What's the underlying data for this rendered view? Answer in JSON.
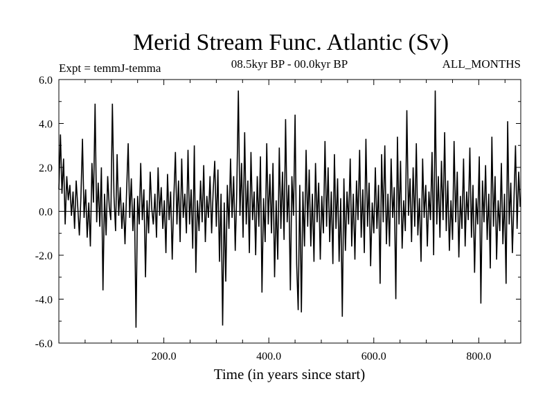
{
  "colors": {
    "background": "#ffffff",
    "line": "#000000",
    "axis": "#000000"
  },
  "chart_data": {
    "type": "line",
    "title": "Merid Stream Func. Atlantic (Sv)",
    "subtitle_left": "Expt = temmJ-temma",
    "subtitle_center": "08.5kyr BP - 00.0kyr BP",
    "subtitle_right": "ALL_MONTHS",
    "xlabel": "Time (in years since start)",
    "ylabel": "",
    "xlim": [
      0,
      880
    ],
    "ylim": [
      -6,
      6
    ],
    "x_ticks": [
      200,
      400,
      600,
      800
    ],
    "x_tick_labels": [
      "200.0",
      "400.0",
      "600.0",
      "800.0"
    ],
    "y_ticks": [
      6,
      4,
      2,
      0,
      -2,
      -4,
      -6
    ],
    "y_tick_labels": [
      "6.0",
      "4.0",
      "2.0",
      "0.0",
      "-2.0",
      "-4.0",
      "-6.0"
    ],
    "zero_line": true,
    "grid": false,
    "series": [
      {
        "name": "Merid Stream Func. Atlantic",
        "points": [
          [
            0,
            1.0
          ],
          [
            3,
            3.5
          ],
          [
            6,
            0.8
          ],
          [
            9,
            2.4
          ],
          [
            12,
            -0.6
          ],
          [
            15,
            1.6
          ],
          [
            18,
            0.5
          ],
          [
            21,
            1.2
          ],
          [
            24,
            -0.2
          ],
          [
            27,
            0.9
          ],
          [
            30,
            -0.8
          ],
          [
            33,
            1.4
          ],
          [
            36,
            0.2
          ],
          [
            39,
            -1.1
          ],
          [
            42,
            0.6
          ],
          [
            45,
            3.3
          ],
          [
            48,
            -0.3
          ],
          [
            51,
            1.0
          ],
          [
            54,
            -1.2
          ],
          [
            57,
            0.4
          ],
          [
            60,
            -1.6
          ],
          [
            63,
            2.2
          ],
          [
            66,
            0.4
          ],
          [
            69,
            4.9
          ],
          [
            72,
            -0.5
          ],
          [
            75,
            1.3
          ],
          [
            78,
            -0.7
          ],
          [
            81,
            2.0
          ],
          [
            84,
            -3.6
          ],
          [
            87,
            0.8
          ],
          [
            90,
            -1.1
          ],
          [
            93,
            1.6
          ],
          [
            96,
            0.2
          ],
          [
            99,
            -0.4
          ],
          [
            102,
            4.9
          ],
          [
            105,
            0.7
          ],
          [
            108,
            -0.9
          ],
          [
            111,
            2.6
          ],
          [
            114,
            -0.2
          ],
          [
            117,
            1.1
          ],
          [
            120,
            -0.8
          ],
          [
            123,
            0.4
          ],
          [
            126,
            -1.5
          ],
          [
            129,
            0.9
          ],
          [
            132,
            3.1
          ],
          [
            135,
            -0.3
          ],
          [
            138,
            1.5
          ],
          [
            141,
            -0.9
          ],
          [
            144,
            0.6
          ],
          [
            147,
            -5.3
          ],
          [
            150,
            0.7
          ],
          [
            153,
            -0.6
          ],
          [
            156,
            2.2
          ],
          [
            159,
            -0.4
          ],
          [
            162,
            1.0
          ],
          [
            165,
            -3.0
          ],
          [
            168,
            0.5
          ],
          [
            171,
            -1.0
          ],
          [
            174,
            1.8
          ],
          [
            177,
            0.1
          ],
          [
            180,
            -0.6
          ],
          [
            183,
            0.8
          ],
          [
            186,
            -1.2
          ],
          [
            189,
            2.0
          ],
          [
            192,
            -0.2
          ],
          [
            195,
            1.1
          ],
          [
            198,
            -0.8
          ],
          [
            201,
            0.5
          ],
          [
            204,
            -1.9
          ],
          [
            207,
            1.7
          ],
          [
            210,
            -0.4
          ],
          [
            213,
            0.9
          ],
          [
            216,
            -2.2
          ],
          [
            219,
            0.6
          ],
          [
            222,
            2.7
          ],
          [
            225,
            -0.6
          ],
          [
            228,
            1.4
          ],
          [
            231,
            -1.4
          ],
          [
            234,
            2.4
          ],
          [
            237,
            -0.3
          ],
          [
            240,
            0.8
          ],
          [
            243,
            -1.0
          ],
          [
            246,
            2.8
          ],
          [
            249,
            -0.6
          ],
          [
            252,
            1.0
          ],
          [
            255,
            -1.7
          ],
          [
            258,
            3.0
          ],
          [
            261,
            -2.8
          ],
          [
            264,
            0.5
          ],
          [
            267,
            -0.9
          ],
          [
            270,
            1.4
          ],
          [
            273,
            -0.5
          ],
          [
            276,
            2.1
          ],
          [
            279,
            -1.4
          ],
          [
            282,
            0.7
          ],
          [
            285,
            -0.3
          ],
          [
            288,
            1.6
          ],
          [
            291,
            -1.0
          ],
          [
            294,
            0.9
          ],
          [
            297,
            2.3
          ],
          [
            300,
            -0.7
          ],
          [
            303,
            1.9
          ],
          [
            306,
            -2.3
          ],
          [
            309,
            0.8
          ],
          [
            312,
            -5.2
          ],
          [
            315,
            0.4
          ],
          [
            318,
            -3.2
          ],
          [
            321,
            1.2
          ],
          [
            324,
            -0.8
          ],
          [
            327,
            2.4
          ],
          [
            330,
            -0.3
          ],
          [
            333,
            1.6
          ],
          [
            336,
            -1.8
          ],
          [
            339,
            0.9
          ],
          [
            342,
            5.5
          ],
          [
            345,
            -0.2
          ],
          [
            348,
            2.2
          ],
          [
            351,
            -1.2
          ],
          [
            354,
            3.6
          ],
          [
            357,
            -0.6
          ],
          [
            360,
            1.4
          ],
          [
            363,
            -1.9
          ],
          [
            366,
            2.7
          ],
          [
            369,
            -0.4
          ],
          [
            372,
            0.9
          ],
          [
            375,
            -2.0
          ],
          [
            378,
            1.6
          ],
          [
            381,
            -0.7
          ],
          [
            384,
            2.5
          ],
          [
            387,
            -3.7
          ],
          [
            390,
            0.6
          ],
          [
            393,
            -1.4
          ],
          [
            396,
            3.1
          ],
          [
            399,
            -0.6
          ],
          [
            402,
            1.7
          ],
          [
            405,
            -1.0
          ],
          [
            408,
            2.2
          ],
          [
            411,
            -3.0
          ],
          [
            414,
            0.5
          ],
          [
            417,
            -2.2
          ],
          [
            420,
            2.9
          ],
          [
            423,
            -0.8
          ],
          [
            426,
            1.8
          ],
          [
            429,
            -1.3
          ],
          [
            432,
            4.2
          ],
          [
            435,
            -0.5
          ],
          [
            438,
            1.2
          ],
          [
            441,
            -3.6
          ],
          [
            444,
            1.6
          ],
          [
            447,
            -0.2
          ],
          [
            450,
            4.4
          ],
          [
            453,
            -2.4
          ],
          [
            456,
            -4.5
          ],
          [
            459,
            1.2
          ],
          [
            462,
            -4.6
          ],
          [
            465,
            0.9
          ],
          [
            468,
            -1.6
          ],
          [
            471,
            2.8
          ],
          [
            474,
            -0.7
          ],
          [
            477,
            1.9
          ],
          [
            480,
            -1.6
          ],
          [
            483,
            0.8
          ],
          [
            486,
            -2.3
          ],
          [
            489,
            2.2
          ],
          [
            492,
            -0.5
          ],
          [
            495,
            1.3
          ],
          [
            498,
            -2.2
          ],
          [
            501,
            0.7
          ],
          [
            504,
            -1.0
          ],
          [
            507,
            3.2
          ],
          [
            510,
            -0.7
          ],
          [
            513,
            2.0
          ],
          [
            516,
            -1.4
          ],
          [
            519,
            0.9
          ],
          [
            522,
            -2.4
          ],
          [
            525,
            2.6
          ],
          [
            528,
            -0.8
          ],
          [
            531,
            1.5
          ],
          [
            534,
            -2.3
          ],
          [
            537,
            0.6
          ],
          [
            540,
            -4.8
          ],
          [
            543,
            1.5
          ],
          [
            546,
            -1.8
          ],
          [
            549,
            0.9
          ],
          [
            552,
            -0.6
          ],
          [
            555,
            2.4
          ],
          [
            558,
            -1.6
          ],
          [
            561,
            0.8
          ],
          [
            564,
            -2.2
          ],
          [
            567,
            1.4
          ],
          [
            570,
            -0.4
          ],
          [
            573,
            2.8
          ],
          [
            576,
            -1.2
          ],
          [
            579,
            1.0
          ],
          [
            582,
            -1.9
          ],
          [
            585,
            3.3
          ],
          [
            588,
            -0.7
          ],
          [
            591,
            1.3
          ],
          [
            594,
            -2.5
          ],
          [
            597,
            0.4
          ],
          [
            600,
            -1.0
          ],
          [
            603,
            2.0
          ],
          [
            606,
            -0.8
          ],
          [
            609,
            1.2
          ],
          [
            612,
            -3.3
          ],
          [
            615,
            2.6
          ],
          [
            618,
            -0.5
          ],
          [
            621,
            3.0
          ],
          [
            624,
            -1.5
          ],
          [
            627,
            0.8
          ],
          [
            630,
            -1.6
          ],
          [
            633,
            2.4
          ],
          [
            636,
            -0.3
          ],
          [
            639,
            1.1
          ],
          [
            642,
            -4.0
          ],
          [
            645,
            3.4
          ],
          [
            648,
            -0.6
          ],
          [
            651,
            2.3
          ],
          [
            654,
            -1.7
          ],
          [
            657,
            0.5
          ],
          [
            660,
            -0.9
          ],
          [
            663,
            4.6
          ],
          [
            666,
            -0.2
          ],
          [
            669,
            1.5
          ],
          [
            672,
            -1.4
          ],
          [
            675,
            2.0
          ],
          [
            678,
            -0.7
          ],
          [
            681,
            3.1
          ],
          [
            684,
            -1.1
          ],
          [
            687,
            0.6
          ],
          [
            690,
            -2.3
          ],
          [
            693,
            2.4
          ],
          [
            696,
            -0.3
          ],
          [
            699,
            1.2
          ],
          [
            702,
            -1.6
          ],
          [
            705,
            0.9
          ],
          [
            708,
            -0.4
          ],
          [
            711,
            2.7
          ],
          [
            714,
            -2.0
          ],
          [
            717,
            5.5
          ],
          [
            720,
            -0.6
          ],
          [
            723,
            1.6
          ],
          [
            726,
            -1.2
          ],
          [
            729,
            2.3
          ],
          [
            732,
            -0.4
          ],
          [
            735,
            3.6
          ],
          [
            738,
            -0.9
          ],
          [
            741,
            1.4
          ],
          [
            744,
            -1.8
          ],
          [
            747,
            0.5
          ],
          [
            750,
            -1.3
          ],
          [
            753,
            3.2
          ],
          [
            756,
            -0.5
          ],
          [
            759,
            1.8
          ],
          [
            762,
            -2.1
          ],
          [
            765,
            0.7
          ],
          [
            768,
            -0.8
          ],
          [
            771,
            2.4
          ],
          [
            774,
            -1.6
          ],
          [
            777,
            0.9
          ],
          [
            780,
            -0.4
          ],
          [
            783,
            2.9
          ],
          [
            786,
            -1.2
          ],
          [
            789,
            1.2
          ],
          [
            792,
            -2.8
          ],
          [
            795,
            0.6
          ],
          [
            798,
            -0.6
          ],
          [
            801,
            2.5
          ],
          [
            804,
            -4.2
          ],
          [
            807,
            1.4
          ],
          [
            810,
            -0.5
          ],
          [
            813,
            2.1
          ],
          [
            816,
            -1.3
          ],
          [
            819,
            0.8
          ],
          [
            822,
            -2.6
          ],
          [
            825,
            3.4
          ],
          [
            828,
            -0.7
          ],
          [
            831,
            1.6
          ],
          [
            834,
            -2.2
          ],
          [
            837,
            0.5
          ],
          [
            840,
            -0.9
          ],
          [
            843,
            2.2
          ],
          [
            846,
            -1.5
          ],
          [
            849,
            0.8
          ],
          [
            852,
            -3.3
          ],
          [
            855,
            4.1
          ],
          [
            858,
            -0.6
          ],
          [
            861,
            1.3
          ],
          [
            864,
            -1.9
          ],
          [
            867,
            0.4
          ],
          [
            870,
            3.0
          ],
          [
            873,
            -0.8
          ],
          [
            876,
            1.8
          ],
          [
            879,
            0.2
          ]
        ]
      }
    ]
  }
}
